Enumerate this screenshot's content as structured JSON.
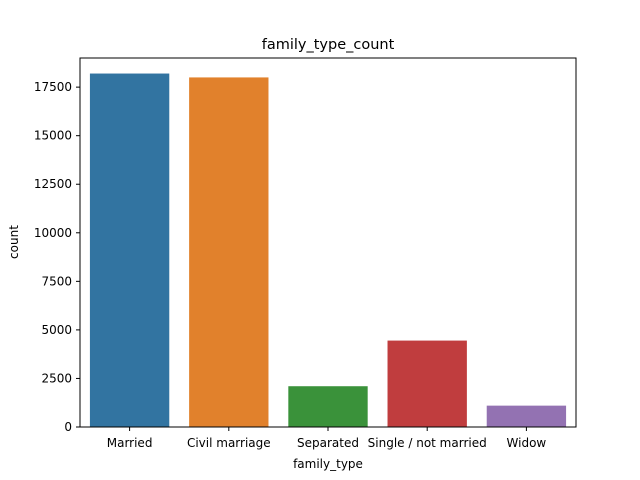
{
  "chart_data": {
    "type": "bar",
    "title": "family_type_count",
    "xlabel": "family_type",
    "ylabel": "count",
    "categories": [
      "Married",
      "Civil marriage",
      "Separated",
      "Single / not married",
      "Widow"
    ],
    "values": [
      18200,
      18000,
      2100,
      4450,
      1100
    ],
    "colors": [
      "#3274a1",
      "#e1812c",
      "#3a923a",
      "#c03d3e",
      "#9372b2"
    ],
    "ylim": [
      0,
      19000
    ],
    "yticks": [
      0,
      2500,
      5000,
      7500,
      10000,
      12500,
      15000,
      17500
    ],
    "grid": false,
    "legend": "none"
  }
}
